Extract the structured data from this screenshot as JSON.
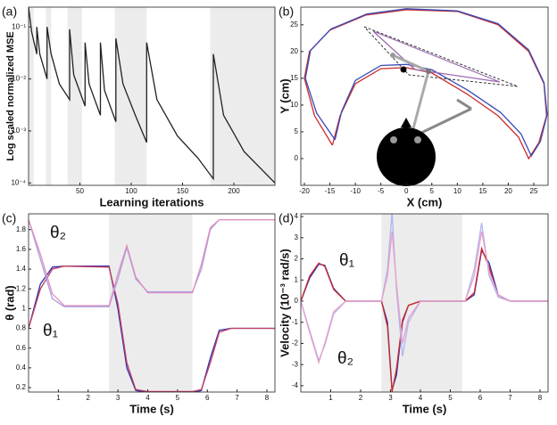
{
  "chart_data": [
    {
      "type": "line",
      "panel_label": "(a)",
      "y_label": "Log scaled normalized MSE",
      "x_label": "Learning iterations",
      "log_y": true,
      "xlim": [
        0,
        240
      ],
      "xticks": [
        50,
        100,
        150,
        200
      ],
      "ylim": [
        9e-05,
        0.24
      ],
      "yticks": [
        {
          "value": 0.1,
          "label": "10⁻¹"
        },
        {
          "value": 0.01,
          "label": "10⁻²"
        },
        {
          "value": 0.001,
          "label": "10⁻³"
        },
        {
          "value": 0.0001,
          "label": "10⁻⁴"
        }
      ],
      "shaded": [
        [
          0,
          5
        ],
        [
          17,
          22
        ],
        [
          38,
          52
        ],
        [
          84,
          115
        ],
        [
          177,
          240
        ]
      ],
      "x": [
        0,
        3,
        8,
        8,
        11,
        18,
        18,
        22,
        30,
        40,
        40,
        44,
        55,
        55,
        59,
        70,
        70,
        74,
        85,
        85,
        92,
        104,
        115,
        115,
        125,
        145,
        165,
        180,
        180,
        190,
        210,
        240
      ],
      "series": [
        {
          "color": "#222222",
          "values": [
            0.24,
            0.08,
            0.03,
            0.1,
            0.03,
            0.01,
            0.1,
            0.03,
            0.008,
            0.004,
            0.09,
            0.012,
            0.003,
            0.05,
            0.008,
            0.002,
            0.05,
            0.006,
            0.0015,
            0.06,
            0.008,
            0.002,
            0.0006,
            0.05,
            0.004,
            0.0008,
            0.0003,
            0.00012,
            0.03,
            0.002,
            0.0004,
            0.0001
          ]
        }
      ]
    },
    {
      "type": "line",
      "panel_label": "(b)",
      "y_label": "Y (cm)",
      "x_label": "X (cm)",
      "xlim": [
        -20.7,
        27.8
      ],
      "xticks": [
        -20,
        -15,
        -10,
        -5,
        0,
        5,
        10,
        15,
        20,
        25
      ],
      "ylim": [
        -5,
        28.3
      ],
      "yticks": [
        0,
        5,
        10,
        15,
        20,
        25
      ],
      "series": [
        {
          "color": "#cc2a2a",
          "x": [
            -14.5,
            -18,
            -20,
            -19,
            -15,
            -8,
            0,
            10,
            18,
            24,
            27,
            27.5,
            26,
            24,
            22,
            18,
            12,
            5,
            0,
            -5,
            -10,
            -13,
            -14.5
          ],
          "values": [
            2.5,
            8,
            15,
            20,
            24,
            26.8,
            27.8,
            27.5,
            25,
            20,
            14,
            8,
            3,
            0,
            4,
            8,
            12,
            16,
            17,
            16.8,
            14,
            8,
            2.5
          ]
        },
        {
          "color": "#3a4ab8",
          "x": [
            -14,
            -17.6,
            -19.8,
            -18.8,
            -14.8,
            -7.8,
            0,
            10,
            18,
            24,
            27,
            27.6,
            26.3,
            24.5,
            22.5,
            18.5,
            12,
            5,
            0,
            -5,
            -10,
            -12.7,
            -14
          ],
          "values": [
            3.5,
            8.5,
            15,
            20.2,
            24.2,
            27,
            28,
            27.6,
            25.2,
            20.3,
            14.2,
            8.2,
            3.2,
            0.5,
            4.6,
            8.6,
            12.8,
            16.6,
            17.6,
            17.4,
            14.6,
            8.8,
            3.5
          ]
        }
      ]
    },
    {
      "type": "line",
      "panel_label": "(c)",
      "y_label": "θ (rad)",
      "x_label": "Time (s)",
      "xlim": [
        0,
        8.27
      ],
      "xticks": [
        1,
        2,
        3,
        4,
        5,
        6,
        7,
        8
      ],
      "ylim": [
        0.155,
        1.96
      ],
      "yticks": [
        0.2,
        0.4,
        0.6,
        0.8,
        1,
        1.2,
        1.4,
        1.6,
        1.8
      ],
      "shaded": [
        [
          2.7,
          5.5
        ]
      ],
      "x": [
        0,
        0.4,
        0.8,
        1.2,
        2.7,
        3.0,
        3.3,
        3.6,
        4.0,
        5.5,
        5.8,
        6.1,
        6.4,
        6.8,
        8.27
      ],
      "series": [
        {
          "name": "θ₁",
          "color": "#3030b0",
          "values": [
            0.8,
            1.25,
            1.42,
            1.43,
            1.43,
            1.0,
            0.4,
            0.17,
            0.15,
            0.15,
            0.17,
            0.5,
            0.78,
            0.8,
            0.8
          ]
        },
        {
          "color": "#c04060",
          "values": [
            0.8,
            1.2,
            1.4,
            1.43,
            1.42,
            1.05,
            0.45,
            0.18,
            0.16,
            0.16,
            0.18,
            0.45,
            0.76,
            0.8,
            0.8
          ]
        },
        {
          "name": "θ₂",
          "color": "#a8a0e0",
          "values": [
            1.9,
            1.5,
            1.1,
            1.02,
            1.02,
            1.3,
            1.62,
            1.3,
            1.17,
            1.17,
            1.4,
            1.8,
            1.9,
            1.9,
            1.9
          ]
        },
        {
          "color": "#e090c0",
          "values": [
            1.9,
            1.55,
            1.15,
            1.03,
            1.03,
            1.35,
            1.64,
            1.32,
            1.16,
            1.16,
            1.45,
            1.82,
            1.9,
            1.9,
            1.9
          ]
        }
      ]
    },
    {
      "type": "line",
      "panel_label": "(d)",
      "y_label": "Velocity (10⁻³ rad/s)",
      "x_label": "Time (s)",
      "xlim": [
        0,
        8.27
      ],
      "xticks": [
        1,
        2,
        3,
        4,
        5,
        6,
        7,
        8
      ],
      "ylim": [
        -4.3,
        4.13
      ],
      "yticks": [
        -4,
        -3,
        -2,
        -1,
        0,
        1,
        2,
        3,
        4
      ],
      "shaded": [
        [
          2.7,
          5.4
        ]
      ],
      "x": [
        0,
        0.3,
        0.6,
        0.8,
        1.1,
        1.5,
        2.7,
        2.9,
        3.05,
        3.2,
        3.4,
        3.6,
        4.0,
        5.5,
        5.8,
        6.05,
        6.3,
        6.6,
        7.0,
        8.27
      ],
      "series": [
        {
          "name": "θ₁",
          "color": "#3030b0",
          "values": [
            0,
            1.1,
            1.75,
            1.7,
            0.6,
            0,
            0,
            -1.0,
            -4.2,
            -3.5,
            -1.0,
            -0.2,
            0,
            0,
            0.3,
            2.4,
            1.8,
            0.3,
            0,
            0
          ]
        },
        {
          "color": "#cc2a2a",
          "values": [
            0,
            1.2,
            1.8,
            1.65,
            0.55,
            0,
            0,
            -1.2,
            -4.3,
            -3.2,
            -0.9,
            -0.2,
            0,
            0,
            0.4,
            2.5,
            1.6,
            0.2,
            0,
            0
          ]
        },
        {
          "name": "θ₂",
          "color": "#b0b4f0",
          "values": [
            0,
            -1.4,
            -2.8,
            -2.1,
            -0.6,
            0,
            0,
            1.5,
            4.2,
            0.5,
            -2.6,
            -1.0,
            0,
            0,
            1.5,
            3.7,
            1.2,
            0.2,
            0,
            0
          ]
        },
        {
          "color": "#e8a0c8",
          "values": [
            0,
            -1.5,
            -2.9,
            -2.0,
            -0.5,
            0,
            0,
            1.2,
            3.3,
            0.8,
            -2.0,
            -0.8,
            0,
            0,
            1.2,
            3.3,
            1.4,
            0.3,
            0,
            0
          ]
        }
      ]
    }
  ]
}
